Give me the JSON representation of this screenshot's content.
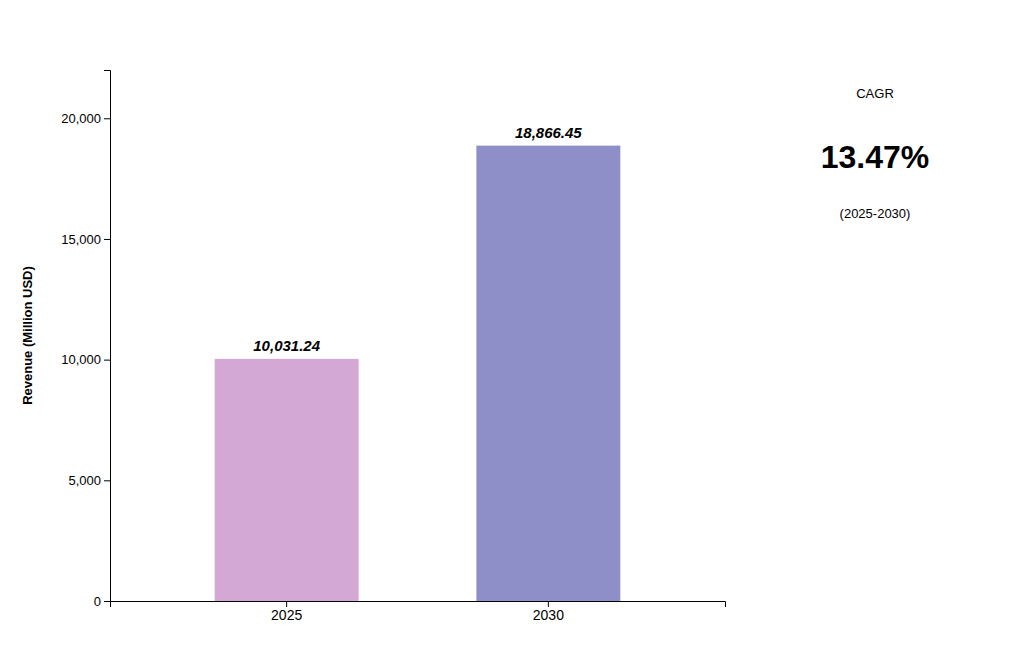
{
  "chart_data": {
    "type": "bar",
    "categories": [
      "2025",
      "2030"
    ],
    "values": [
      10031.24,
      18866.45
    ],
    "value_labels": [
      "10,031.24",
      "18,866.45"
    ],
    "data_labels": true,
    "colors": [
      "#D4A8D4",
      "#8E8EC8"
    ],
    "ylabel": "Revenue (Million USD)",
    "ylim": [
      0,
      22000
    ],
    "yticks": [
      0,
      {
        "value": 5000,
        "label": "5,000"
      },
      {
        "value": 10000,
        "label": "10,000"
      },
      {
        "value": 15000,
        "label": "15,000"
      },
      {
        "value": 20000,
        "label": "20,000"
      }
    ],
    "annotations": [
      "CAGR",
      "13.47%",
      "(2025-2030)"
    ],
    "grid": false
  }
}
